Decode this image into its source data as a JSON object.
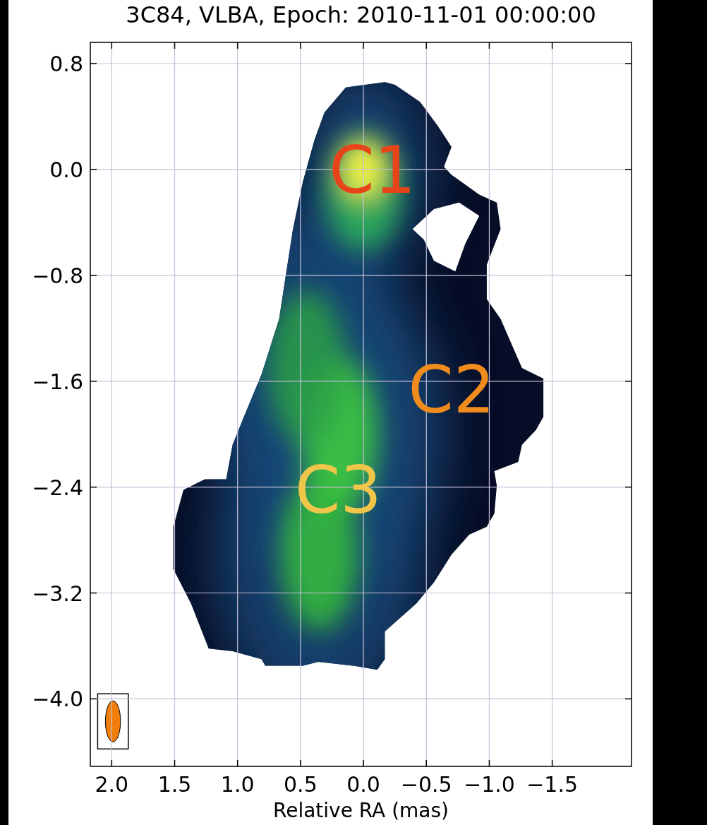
{
  "chart_data": {
    "type": "image",
    "title": "3C84, VLBA, Epoch: 2010-11-01 00:00:00",
    "xlabel": "Relative RA (mas)",
    "xlim": [
      2.17,
      -2.13
    ],
    "ylim": [
      -4.51,
      0.96
    ],
    "xticks": [
      {
        "value": 2.0,
        "label": "2.0"
      },
      {
        "value": 1.5,
        "label": "1.5"
      },
      {
        "value": 1.0,
        "label": "1.0"
      },
      {
        "value": 0.5,
        "label": "0.5"
      },
      {
        "value": 0.0,
        "label": "0.0"
      },
      {
        "value": -0.5,
        "label": "−0.5"
      },
      {
        "value": -1.0,
        "label": "−1.0"
      },
      {
        "value": -1.5,
        "label": "−1.5"
      }
    ],
    "yticks": [
      {
        "value": 0.8,
        "label": "0.8"
      },
      {
        "value": 0.0,
        "label": "0.0"
      },
      {
        "value": -0.8,
        "label": "−0.8"
      },
      {
        "value": -1.6,
        "label": "−1.6"
      },
      {
        "value": -2.4,
        "label": "−2.4"
      },
      {
        "value": -3.2,
        "label": "−3.2"
      },
      {
        "value": -4.0,
        "label": "−4.0"
      }
    ],
    "grid": true,
    "emission_outline": {
      "x": [
        -0.17,
        0.14,
        0.31,
        0.39,
        0.48,
        0.56,
        0.62,
        0.67,
        0.81,
        0.95,
        1.04,
        1.09,
        1.26,
        1.43,
        1.51,
        1.51,
        1.37,
        1.23,
        1.04,
        0.81,
        0.78,
        0.48,
        0.36,
        0.08,
        -0.11,
        -0.17,
        -0.17,
        -0.42,
        -0.56,
        -0.7,
        -0.84,
        -0.98,
        -1.04,
        -1.06,
        -1.04,
        -1.23,
        -1.26,
        -1.37,
        -1.43,
        -1.43,
        -1.26,
        -1.09,
        -0.98,
        -0.98,
        -1.09,
        -1.06,
        -0.92,
        -0.7,
        -0.64,
        -0.7,
        -0.59,
        -0.45,
        -0.25
      ],
      "y": [
        0.66,
        0.62,
        0.43,
        0.22,
        -0.09,
        -0.45,
        -0.82,
        -1.13,
        -1.55,
        -1.87,
        -2.08,
        -2.34,
        -2.34,
        -2.42,
        -2.7,
        -3.02,
        -3.28,
        -3.62,
        -3.64,
        -3.7,
        -3.75,
        -3.75,
        -3.72,
        -3.75,
        -3.78,
        -3.7,
        -3.49,
        -3.28,
        -3.12,
        -2.91,
        -2.76,
        -2.7,
        -2.6,
        -2.39,
        -2.28,
        -2.21,
        -2.08,
        -1.97,
        -1.87,
        -1.58,
        -1.5,
        -1.13,
        -0.98,
        -0.72,
        -0.45,
        -0.25,
        -0.19,
        -0.04,
        0.02,
        0.17,
        0.33,
        0.51,
        0.64
      ]
    },
    "hole_outline": {
      "x": [
        -0.56,
        -0.76,
        -0.92,
        -0.81,
        -0.73,
        -0.56,
        -0.48,
        -0.39
      ],
      "y": [
        -0.3,
        -0.25,
        -0.35,
        -0.56,
        -0.77,
        -0.69,
        -0.53,
        -0.45
      ]
    },
    "peaks": {
      "x": [
        0.0,
        0.19,
        0.35,
        0.45
      ],
      "y": [
        0.0,
        -2.0,
        -2.9,
        -1.5
      ],
      "colors": [
        "#f4f545",
        "#3fd23c",
        "#36c038",
        "#2aa046"
      ]
    },
    "beam": {
      "x": 1.99,
      "y": -4.17,
      "major": 0.31,
      "minor": 0.12,
      "color": "#f27f0c"
    },
    "annotations": [
      {
        "text": "C1",
        "x": -0.07,
        "y": 0.0,
        "color": "#e8441a"
      },
      {
        "text": "C2",
        "x": -0.7,
        "y": -1.66,
        "color": "#f08c1e"
      },
      {
        "text": "C3",
        "x": 0.2,
        "y": -2.42,
        "color": "#f0c64a"
      }
    ]
  }
}
